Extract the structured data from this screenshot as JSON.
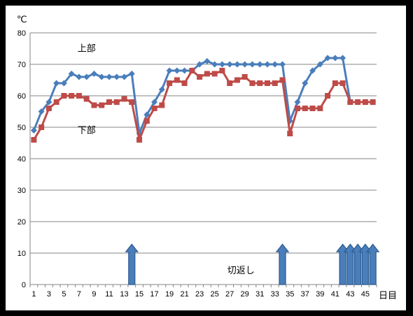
{
  "chart_data": {
    "type": "line",
    "y_unit": "℃",
    "x_unit": "日目",
    "ylim": [
      0,
      80
    ],
    "y_ticks": [
      0,
      10,
      20,
      30,
      40,
      50,
      60,
      70,
      80
    ],
    "x_range": [
      1,
      46
    ],
    "x_tick_labels": [
      "1",
      "3",
      "5",
      "7",
      "9",
      "11",
      "13",
      "15",
      "17",
      "19",
      "21",
      "23",
      "25",
      "27",
      "29",
      "31",
      "33",
      "35",
      "37",
      "39",
      "41",
      "43",
      "45"
    ],
    "grid": "horizontal",
    "legend": "none",
    "series": [
      {
        "name": "上部",
        "color": "#4a7ebb",
        "marker": "diamond",
        "x": [
          1,
          2,
          3,
          4,
          5,
          6,
          7,
          8,
          9,
          10,
          11,
          12,
          13,
          14,
          15,
          16,
          17,
          18,
          19,
          20,
          21,
          22,
          23,
          24,
          25,
          26,
          27,
          28,
          29,
          30,
          31,
          32,
          33,
          34,
          35,
          36,
          37,
          38,
          39,
          40,
          41,
          42,
          43,
          44,
          45,
          46
        ],
        "values": [
          49,
          55,
          58,
          64,
          64,
          67,
          66,
          66,
          67,
          66,
          66,
          66,
          66,
          67,
          48,
          54,
          58,
          62,
          68,
          68,
          68,
          68,
          70,
          71,
          70,
          70,
          70,
          70,
          70,
          70,
          70,
          70,
          70,
          70,
          52,
          58,
          64,
          68,
          70,
          72,
          72,
          72,
          58,
          58,
          58,
          58
        ]
      },
      {
        "name": "下部",
        "color": "#be4b48",
        "marker": "square",
        "x": [
          1,
          2,
          3,
          4,
          5,
          6,
          7,
          8,
          9,
          10,
          11,
          12,
          13,
          14,
          15,
          16,
          17,
          18,
          19,
          20,
          21,
          22,
          23,
          24,
          25,
          26,
          27,
          28,
          29,
          30,
          31,
          32,
          33,
          34,
          35,
          36,
          37,
          38,
          39,
          40,
          41,
          42,
          43,
          44,
          45,
          46
        ],
        "values": [
          46,
          50,
          56,
          58,
          60,
          60,
          60,
          59,
          57,
          57,
          58,
          58,
          59,
          58,
          46,
          52,
          56,
          57,
          64,
          65,
          64,
          68,
          66,
          67,
          67,
          68,
          64,
          65,
          66,
          64,
          64,
          64,
          64,
          65,
          48,
          56,
          56,
          56,
          56,
          60,
          64,
          64,
          58,
          58,
          58,
          58
        ]
      }
    ],
    "annotations": [
      {
        "text": "上部",
        "x": 8,
        "y": 75
      },
      {
        "text": "下部",
        "x": 8,
        "y": 49
      },
      {
        "text": "切返し",
        "x": 28.5,
        "y": 4.5
      }
    ],
    "turning_days": [
      14,
      34,
      42,
      43,
      44,
      45,
      46
    ],
    "arrow_color": "#4a7ebb"
  }
}
